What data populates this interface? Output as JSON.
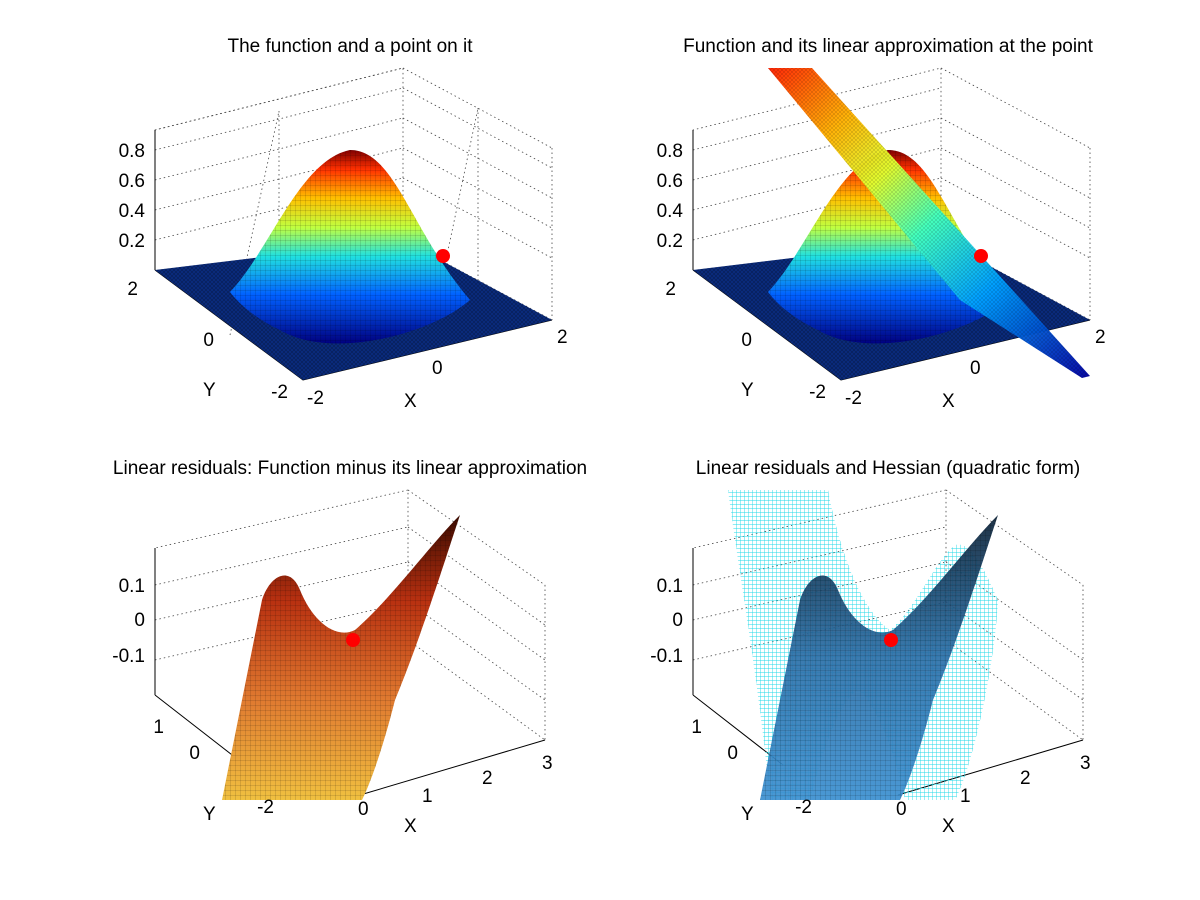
{
  "figure": {
    "background": "#ffffff",
    "mesh_color": "#000000",
    "point_color": "#ff0000",
    "colormap": "jet"
  },
  "chart_data": [
    {
      "type": "surface3d",
      "title": "The function and a point on it",
      "xlabel": "X",
      "ylabel": "Y",
      "zlabel": "",
      "xlim": [
        -2,
        2
      ],
      "ylim": [
        -2,
        2
      ],
      "zlim": [
        0,
        0.9
      ],
      "xticks": [
        "-2",
        "0",
        "2"
      ],
      "yticks": [
        "-2",
        "0",
        "2"
      ],
      "zticks": [
        "0.2",
        "0.4",
        "0.6",
        "0.8"
      ],
      "surfaces": [
        {
          "kind": "function",
          "colormap": "jet",
          "peak": 0.84
        }
      ],
      "point": {
        "x": 1.0,
        "y": 1.0,
        "z": 0.28
      },
      "grid": true
    },
    {
      "type": "surface3d",
      "title": "Function and its linear approximation at the point",
      "xlabel": "X",
      "ylabel": "Y",
      "zlabel": "",
      "xlim": [
        -2,
        2
      ],
      "ylim": [
        -2,
        2
      ],
      "zlim": [
        0,
        0.9
      ],
      "xticks": [
        "-2",
        "0",
        "2"
      ],
      "yticks": [
        "-2",
        "0",
        "2"
      ],
      "zticks": [
        "0.2",
        "0.4",
        "0.6",
        "0.8"
      ],
      "surfaces": [
        {
          "kind": "function",
          "colormap": "jet",
          "peak": 0.84
        },
        {
          "kind": "tangent-plane",
          "colormap": "jet"
        }
      ],
      "point": {
        "x": 1.0,
        "y": 1.0,
        "z": 0.28
      },
      "grid": true
    },
    {
      "type": "surface3d",
      "title": "Linear residuals: Function minus its linear approximation",
      "xlabel": "X",
      "ylabel": "Y",
      "zlabel": "",
      "xlim": [
        0,
        3
      ],
      "ylim": [
        -2,
        1
      ],
      "zlim": [
        -0.2,
        0.2
      ],
      "xticks": [
        "0",
        "1",
        "2",
        "3"
      ],
      "yticks": [
        "-2",
        "0",
        "1"
      ],
      "zticks": [
        "-0.1",
        "0",
        "0.1"
      ],
      "surfaces": [
        {
          "kind": "residual",
          "colormap": "hot"
        }
      ],
      "point": {
        "x": 1.0,
        "y": 1.0,
        "z": 0.0
      },
      "grid": true
    },
    {
      "type": "surface3d",
      "title": "Linear residuals and Hessian (quadratic form)",
      "xlabel": "X",
      "ylabel": "Y",
      "zlabel": "",
      "xlim": [
        0,
        3
      ],
      "ylim": [
        -2,
        1
      ],
      "zlim": [
        -0.2,
        0.2
      ],
      "xticks": [
        "0",
        "1",
        "2",
        "3"
      ],
      "yticks": [
        "-2",
        "0",
        "1"
      ],
      "zticks": [
        "-0.1",
        "0",
        "0.1"
      ],
      "surfaces": [
        {
          "kind": "residual",
          "colormap": "blue"
        },
        {
          "kind": "hessian-quadratic-form",
          "colormap": "cyan-wireframe"
        }
      ],
      "point": {
        "x": 1.0,
        "y": 1.0,
        "z": 0.0
      },
      "grid": true
    }
  ]
}
